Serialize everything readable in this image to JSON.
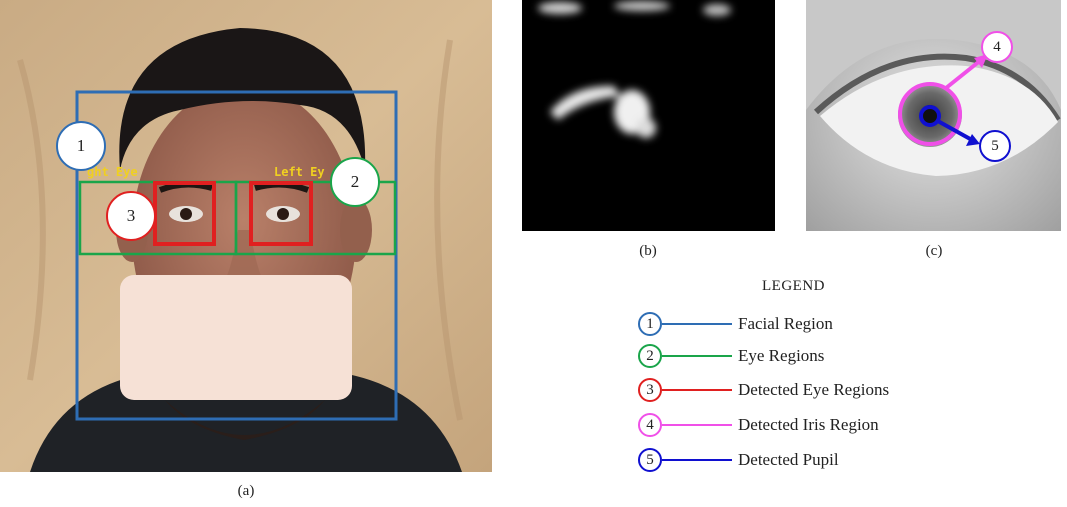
{
  "panels": {
    "a": {
      "caption": "(a)",
      "right_eye_label": "ght Eye",
      "left_eye_label": "Left Ey"
    },
    "b": {
      "caption": "(b)"
    },
    "c": {
      "caption": "(c)"
    }
  },
  "callouts": {
    "c1": "1",
    "c2": "2",
    "c3": "3",
    "c4": "4",
    "c5": "5"
  },
  "legend": {
    "title": "LEGEND",
    "items": [
      {
        "number": "1",
        "label": "Facial Region",
        "color": "#2e6db4"
      },
      {
        "number": "2",
        "label": "Eye Regions",
        "color": "#1aa54a"
      },
      {
        "number": "3",
        "label": "Detected Eye Regions",
        "color": "#e02020"
      },
      {
        "number": "4",
        "label": "Detected Iris Region",
        "color": "#f050e8"
      },
      {
        "number": "5",
        "label": "Detected Pupil",
        "color": "#1010d0"
      }
    ]
  }
}
